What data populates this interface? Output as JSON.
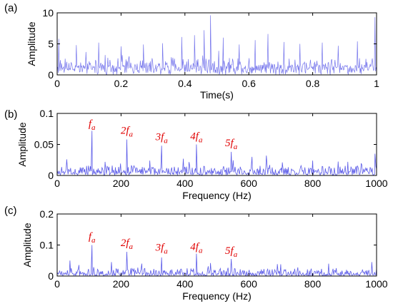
{
  "chart_data": [
    {
      "panel_label": "(a)",
      "type": "line",
      "xlabel": "Time(s)",
      "ylabel": "Amplitude",
      "xlim": [
        0,
        1
      ],
      "ylim": [
        0,
        10
      ],
      "xticks": [
        0,
        0.2,
        0.4,
        0.6,
        0.8,
        1
      ],
      "xtick_labels": [
        "0",
        "0.2",
        "0.4",
        "0.6",
        "0.8",
        "1"
      ],
      "yticks": [
        0,
        5,
        10
      ],
      "ytick_labels": [
        "0",
        "5",
        "10"
      ],
      "color": "#4a4ae6",
      "signal": {
        "kind": "noise",
        "n": 600,
        "x_range": [
          0,
          1
        ],
        "base": 1.4,
        "spread": 1.6,
        "spikes": [
          {
            "x": 0.005,
            "y": 5.8
          },
          {
            "x": 0.06,
            "y": 4.8
          },
          {
            "x": 0.13,
            "y": 5.2
          },
          {
            "x": 0.2,
            "y": 4.6
          },
          {
            "x": 0.27,
            "y": 4.9
          },
          {
            "x": 0.33,
            "y": 5.1
          },
          {
            "x": 0.39,
            "y": 6.1
          },
          {
            "x": 0.43,
            "y": 6.4
          },
          {
            "x": 0.46,
            "y": 7.2
          },
          {
            "x": 0.48,
            "y": 9.6
          },
          {
            "x": 0.52,
            "y": 6.0
          },
          {
            "x": 0.57,
            "y": 4.9
          },
          {
            "x": 0.62,
            "y": 5.6
          },
          {
            "x": 0.66,
            "y": 6.6
          },
          {
            "x": 0.71,
            "y": 5.3
          },
          {
            "x": 0.76,
            "y": 5.0
          },
          {
            "x": 0.83,
            "y": 5.2
          },
          {
            "x": 0.88,
            "y": 4.7
          },
          {
            "x": 0.94,
            "y": 5.4
          },
          {
            "x": 0.995,
            "y": 9.3
          }
        ]
      }
    },
    {
      "panel_label": "(b)",
      "type": "line",
      "xlabel": "Frequency (Hz)",
      "ylabel": "Amplitude",
      "xlim": [
        0,
        1000
      ],
      "ylim": [
        0,
        0.1
      ],
      "xticks": [
        0,
        200,
        400,
        600,
        800,
        1000
      ],
      "xtick_labels": [
        "0",
        "200",
        "400",
        "600",
        "800",
        "1000"
      ],
      "yticks": [
        0,
        0.05,
        0.1
      ],
      "ytick_labels": [
        "0",
        "0.05",
        "0.1"
      ],
      "color": "#4a4ae6",
      "signal": {
        "kind": "noise",
        "n": 500,
        "x_range": [
          0,
          1000
        ],
        "base": 0.003,
        "spread": 0.014,
        "spikes": [
          {
            "x": 109,
            "y": 0.072
          },
          {
            "x": 218,
            "y": 0.058
          },
          {
            "x": 327,
            "y": 0.048
          },
          {
            "x": 436,
            "y": 0.05
          },
          {
            "x": 545,
            "y": 0.038
          },
          {
            "x": 30,
            "y": 0.026
          },
          {
            "x": 150,
            "y": 0.022
          },
          {
            "x": 290,
            "y": 0.024
          },
          {
            "x": 395,
            "y": 0.027
          },
          {
            "x": 610,
            "y": 0.03
          },
          {
            "x": 655,
            "y": 0.032
          },
          {
            "x": 705,
            "y": 0.021
          },
          {
            "x": 800,
            "y": 0.024
          },
          {
            "x": 910,
            "y": 0.022
          },
          {
            "x": 995,
            "y": 0.035
          }
        ]
      },
      "annotations": [
        {
          "coef": "",
          "label": "f",
          "sub": "a",
          "x": 109,
          "y": 0.078
        },
        {
          "coef": "2",
          "label": "f",
          "sub": "a",
          "x": 218,
          "y": 0.067
        },
        {
          "coef": "3",
          "label": "f",
          "sub": "a",
          "x": 327,
          "y": 0.057
        },
        {
          "coef": "4",
          "label": "f",
          "sub": "a",
          "x": 436,
          "y": 0.058
        },
        {
          "coef": "5",
          "label": "f",
          "sub": "a",
          "x": 545,
          "y": 0.047
        }
      ]
    },
    {
      "panel_label": "(c)",
      "type": "line",
      "xlabel": "Frequency (Hz)",
      "ylabel": "Amplitude",
      "xlim": [
        0,
        1000
      ],
      "ylim": [
        0,
        0.2
      ],
      "xticks": [
        0,
        200,
        400,
        600,
        800,
        1000
      ],
      "xtick_labels": [
        "0",
        "200",
        "400",
        "600",
        "800",
        "1000"
      ],
      "yticks": [
        0,
        0.1,
        0.2
      ],
      "ytick_labels": [
        "0",
        "0.1",
        "0.2"
      ],
      "color": "#4a4ae6",
      "signal": {
        "kind": "noise",
        "n": 500,
        "x_range": [
          0,
          1000
        ],
        "base": 0.004,
        "spread": 0.022,
        "spikes": [
          {
            "x": 109,
            "y": 0.1
          },
          {
            "x": 218,
            "y": 0.078
          },
          {
            "x": 327,
            "y": 0.06
          },
          {
            "x": 436,
            "y": 0.072
          },
          {
            "x": 545,
            "y": 0.055
          },
          {
            "x": 40,
            "y": 0.05
          },
          {
            "x": 170,
            "y": 0.045
          },
          {
            "x": 265,
            "y": 0.04
          },
          {
            "x": 480,
            "y": 0.042
          },
          {
            "x": 700,
            "y": 0.038
          },
          {
            "x": 850,
            "y": 0.04
          },
          {
            "x": 985,
            "y": 0.045
          }
        ]
      },
      "annotations": [
        {
          "coef": "",
          "label": "f",
          "sub": "a",
          "x": 109,
          "y": 0.117
        },
        {
          "coef": "2",
          "label": "f",
          "sub": "a",
          "x": 218,
          "y": 0.096
        },
        {
          "coef": "3",
          "label": "f",
          "sub": "a",
          "x": 327,
          "y": 0.082
        },
        {
          "coef": "4",
          "label": "f",
          "sub": "a",
          "x": 436,
          "y": 0.084
        },
        {
          "coef": "5",
          "label": "f",
          "sub": "a",
          "x": 545,
          "y": 0.071
        }
      ]
    }
  ]
}
